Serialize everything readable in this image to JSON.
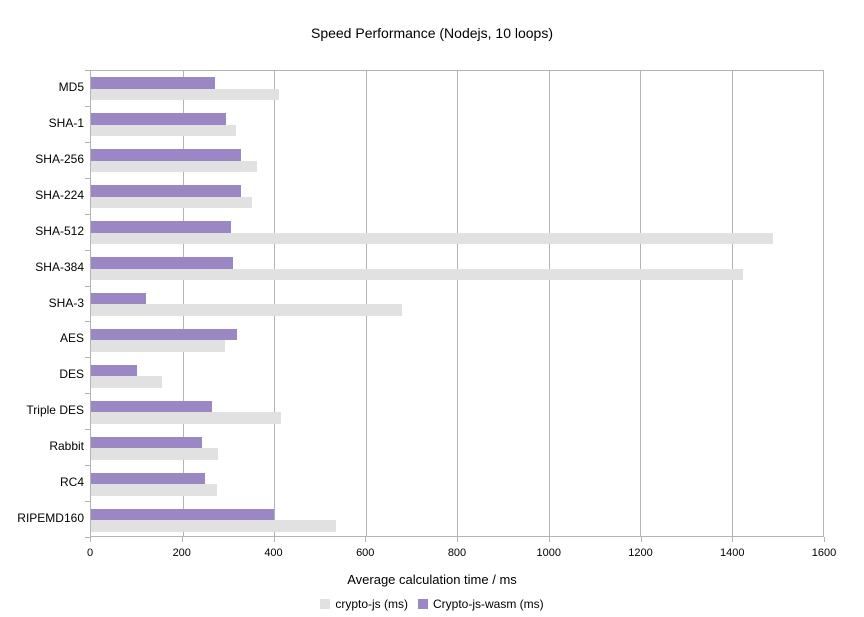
{
  "chart_data": {
    "type": "bar",
    "orientation": "horizontal",
    "title": "Speed Performance (Nodejs, 10 loops)",
    "xlabel": "Average calculation time / ms",
    "xlim": [
      0,
      1600
    ],
    "xticks": [
      0,
      200,
      400,
      600,
      800,
      1000,
      1200,
      1400,
      1600
    ],
    "grid": true,
    "legend_position": "bottom",
    "categories": [
      "MD5",
      "SHA-1",
      "SHA-256",
      "SHA-224",
      "SHA-512",
      "SHA-384",
      "SHA-3",
      "AES",
      "DES",
      "Triple DES",
      "Rabbit",
      "RC4",
      "RIPEMD160"
    ],
    "series": [
      {
        "name": "crypto-js (ms)",
        "color": "#e1e1e1",
        "values": [
          410,
          318,
          362,
          352,
          1490,
          1425,
          680,
          292,
          155,
          415,
          277,
          275,
          535
        ]
      },
      {
        "name": "Crypto-js-wasm (ms)",
        "color": "#9b87c3",
        "values": [
          270,
          294,
          328,
          328,
          305,
          310,
          120,
          320,
          100,
          265,
          243,
          249,
          400
        ]
      }
    ]
  },
  "colors": {
    "background": "#ffffff",
    "grid": "#b3b3b3",
    "axis": "#b3b3b3",
    "text": "#000000"
  }
}
